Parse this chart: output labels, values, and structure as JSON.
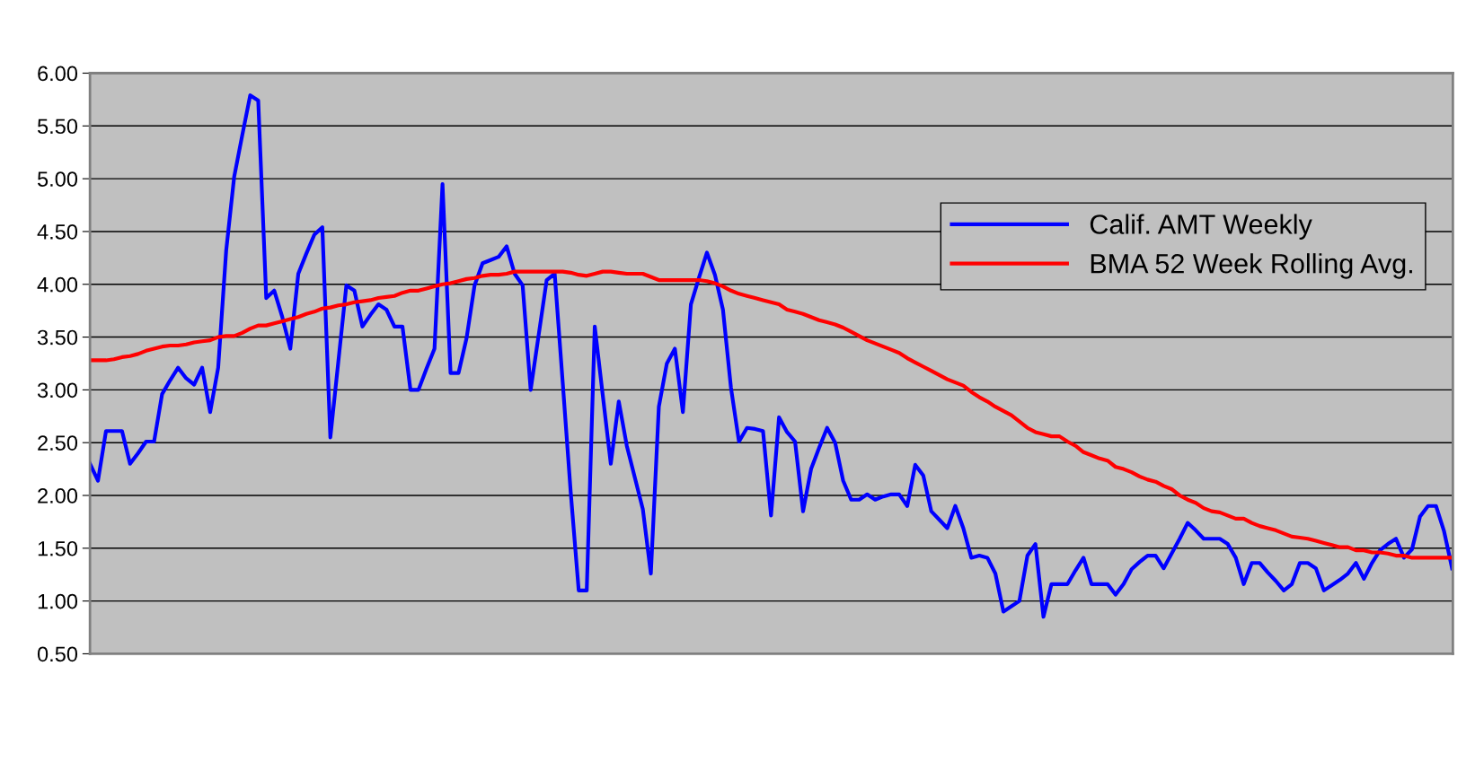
{
  "chart_data": {
    "type": "line",
    "categories": [
      null,
      null,
      null,
      null,
      null,
      null,
      null,
      null,
      null,
      null,
      null,
      null,
      null,
      null,
      null,
      null,
      null,
      null,
      null,
      null,
      null,
      null,
      null,
      null,
      null,
      null,
      null,
      null,
      null,
      null,
      null,
      null,
      null,
      null,
      null,
      null,
      null,
      null,
      null,
      null,
      null,
      null,
      null,
      null,
      null,
      null,
      null,
      null,
      null,
      null,
      null,
      null,
      null,
      null,
      null,
      null,
      null,
      null,
      null,
      null,
      null,
      null,
      null,
      null,
      null,
      null,
      null,
      null,
      null,
      null,
      null,
      null,
      null,
      null,
      null,
      null,
      null,
      null,
      null,
      null,
      null,
      null,
      null,
      null,
      null,
      null,
      null,
      null,
      null,
      null,
      null,
      null,
      null,
      null,
      null,
      null,
      null,
      null,
      null,
      null,
      null,
      null,
      null,
      null,
      null,
      null,
      null,
      null,
      null,
      null,
      null,
      null,
      null,
      null,
      null,
      null,
      null,
      null,
      null,
      null,
      null,
      null,
      null,
      null,
      null,
      null,
      null,
      null,
      null,
      null,
      null,
      null,
      null,
      null,
      null,
      null,
      null,
      null,
      null,
      null,
      null,
      null,
      null,
      null,
      null,
      null,
      null,
      null,
      null,
      null,
      null,
      null,
      null,
      null,
      null,
      null,
      null,
      null,
      null,
      null,
      null,
      null,
      null,
      null,
      null,
      null,
      null,
      null,
      null,
      null,
      null
    ],
    "series": [
      {
        "name": "Calif. AMT Weekly",
        "color": "#0000ff",
        "values": [
          2.3,
          2.14,
          2.61,
          2.61,
          2.61,
          2.3,
          2.4,
          2.51,
          2.51,
          2.96,
          3.09,
          3.21,
          3.11,
          3.05,
          3.21,
          2.79,
          3.21,
          4.32,
          5.02,
          5.41,
          5.79,
          5.74,
          3.87,
          3.94,
          3.69,
          3.39,
          4.1,
          4.29,
          4.47,
          4.54,
          2.55,
          3.27,
          3.99,
          3.94,
          3.6,
          3.71,
          3.81,
          3.76,
          3.6,
          3.6,
          3.0,
          3.0,
          3.2,
          3.39,
          4.95,
          3.16,
          3.16,
          3.49,
          3.99,
          4.2,
          4.23,
          4.26,
          4.36,
          4.1,
          3.99,
          3.0,
          3.52,
          4.04,
          4.1,
          3.07,
          2.03,
          1.1,
          1.1,
          3.6,
          2.95,
          2.3,
          2.89,
          2.47,
          2.17,
          1.87,
          1.26,
          2.84,
          3.25,
          3.39,
          2.79,
          3.81,
          4.06,
          4.3,
          4.09,
          3.76,
          3.02,
          2.51,
          2.64,
          2.63,
          2.61,
          1.81,
          2.74,
          2.6,
          2.51,
          1.85,
          2.25,
          2.45,
          2.64,
          2.5,
          2.14,
          1.96,
          1.96,
          2.01,
          1.96,
          1.99,
          2.01,
          2.01,
          1.9,
          2.29,
          2.19,
          1.85,
          1.77,
          1.69,
          1.9,
          1.69,
          1.41,
          1.43,
          1.41,
          1.26,
          0.9,
          0.95,
          1.0,
          1.43,
          1.54,
          0.85,
          1.16,
          1.16,
          1.16,
          1.29,
          1.41,
          1.16,
          1.16,
          1.16,
          1.06,
          1.16,
          1.3,
          1.37,
          1.43,
          1.43,
          1.31,
          1.45,
          1.59,
          1.74,
          1.67,
          1.59,
          1.59,
          1.59,
          1.54,
          1.41,
          1.16,
          1.36,
          1.36,
          1.27,
          1.19,
          1.1,
          1.16,
          1.36,
          1.36,
          1.31,
          1.1,
          1.15,
          1.2,
          1.26,
          1.36,
          1.21,
          1.36,
          1.48,
          1.54,
          1.59,
          1.41,
          1.49,
          1.8,
          1.9,
          1.9,
          1.66,
          1.31
        ]
      },
      {
        "name": "BMA 52 Week Rolling Avg.",
        "color": "#ff0000",
        "values": [
          3.28,
          3.28,
          3.28,
          3.29,
          3.31,
          3.32,
          3.34,
          3.37,
          3.39,
          3.41,
          3.42,
          3.42,
          3.43,
          3.45,
          3.46,
          3.47,
          3.5,
          3.51,
          3.51,
          3.54,
          3.58,
          3.61,
          3.61,
          3.63,
          3.65,
          3.67,
          3.69,
          3.72,
          3.74,
          3.77,
          3.78,
          3.8,
          3.81,
          3.83,
          3.84,
          3.85,
          3.87,
          3.88,
          3.89,
          3.92,
          3.94,
          3.94,
          3.96,
          3.98,
          4.0,
          4.01,
          4.03,
          4.05,
          4.06,
          4.08,
          4.09,
          4.09,
          4.1,
          4.12,
          4.12,
          4.12,
          4.12,
          4.12,
          4.12,
          4.12,
          4.11,
          4.09,
          4.08,
          4.1,
          4.12,
          4.12,
          4.11,
          4.1,
          4.1,
          4.1,
          4.07,
          4.04,
          4.04,
          4.04,
          4.04,
          4.04,
          4.04,
          4.03,
          4.01,
          3.98,
          3.94,
          3.91,
          3.89,
          3.87,
          3.85,
          3.83,
          3.81,
          3.76,
          3.74,
          3.72,
          3.69,
          3.66,
          3.64,
          3.62,
          3.59,
          3.55,
          3.51,
          3.47,
          3.44,
          3.41,
          3.38,
          3.35,
          3.3,
          3.26,
          3.22,
          3.18,
          3.14,
          3.1,
          3.07,
          3.04,
          2.98,
          2.93,
          2.89,
          2.84,
          2.8,
          2.76,
          2.7,
          2.64,
          2.6,
          2.58,
          2.56,
          2.56,
          2.51,
          2.47,
          2.41,
          2.38,
          2.35,
          2.33,
          2.27,
          2.25,
          2.22,
          2.18,
          2.15,
          2.13,
          2.09,
          2.06,
          2.0,
          1.96,
          1.93,
          1.88,
          1.85,
          1.84,
          1.81,
          1.78,
          1.78,
          1.74,
          1.71,
          1.69,
          1.67,
          1.64,
          1.61,
          1.6,
          1.59,
          1.57,
          1.55,
          1.53,
          1.51,
          1.51,
          1.48,
          1.48,
          1.46,
          1.46,
          1.45,
          1.43,
          1.43,
          1.41,
          1.41,
          1.41,
          1.41,
          1.41,
          1.41
        ]
      }
    ],
    "ylim": [
      0.5,
      6
    ],
    "yticks": [
      {
        "value": 0.5,
        "label": "0.50"
      },
      {
        "value": 1,
        "label": "1.00"
      },
      {
        "value": 1.5,
        "label": "1.50"
      },
      {
        "value": 2,
        "label": "2.00"
      },
      {
        "value": 2.5,
        "label": "2.50"
      },
      {
        "value": 3,
        "label": "3.00"
      },
      {
        "value": 3.5,
        "label": "3.50"
      },
      {
        "value": 4,
        "label": "4.00"
      },
      {
        "value": 4.5,
        "label": "4.50"
      },
      {
        "value": 5,
        "label": "5.00"
      },
      {
        "value": 5.5,
        "label": "5.50"
      },
      {
        "value": 6,
        "label": "6.00"
      }
    ],
    "tick_labels": "y",
    "grid": "y",
    "legend": "top right",
    "marker": "none",
    "line_style": "solid"
  }
}
